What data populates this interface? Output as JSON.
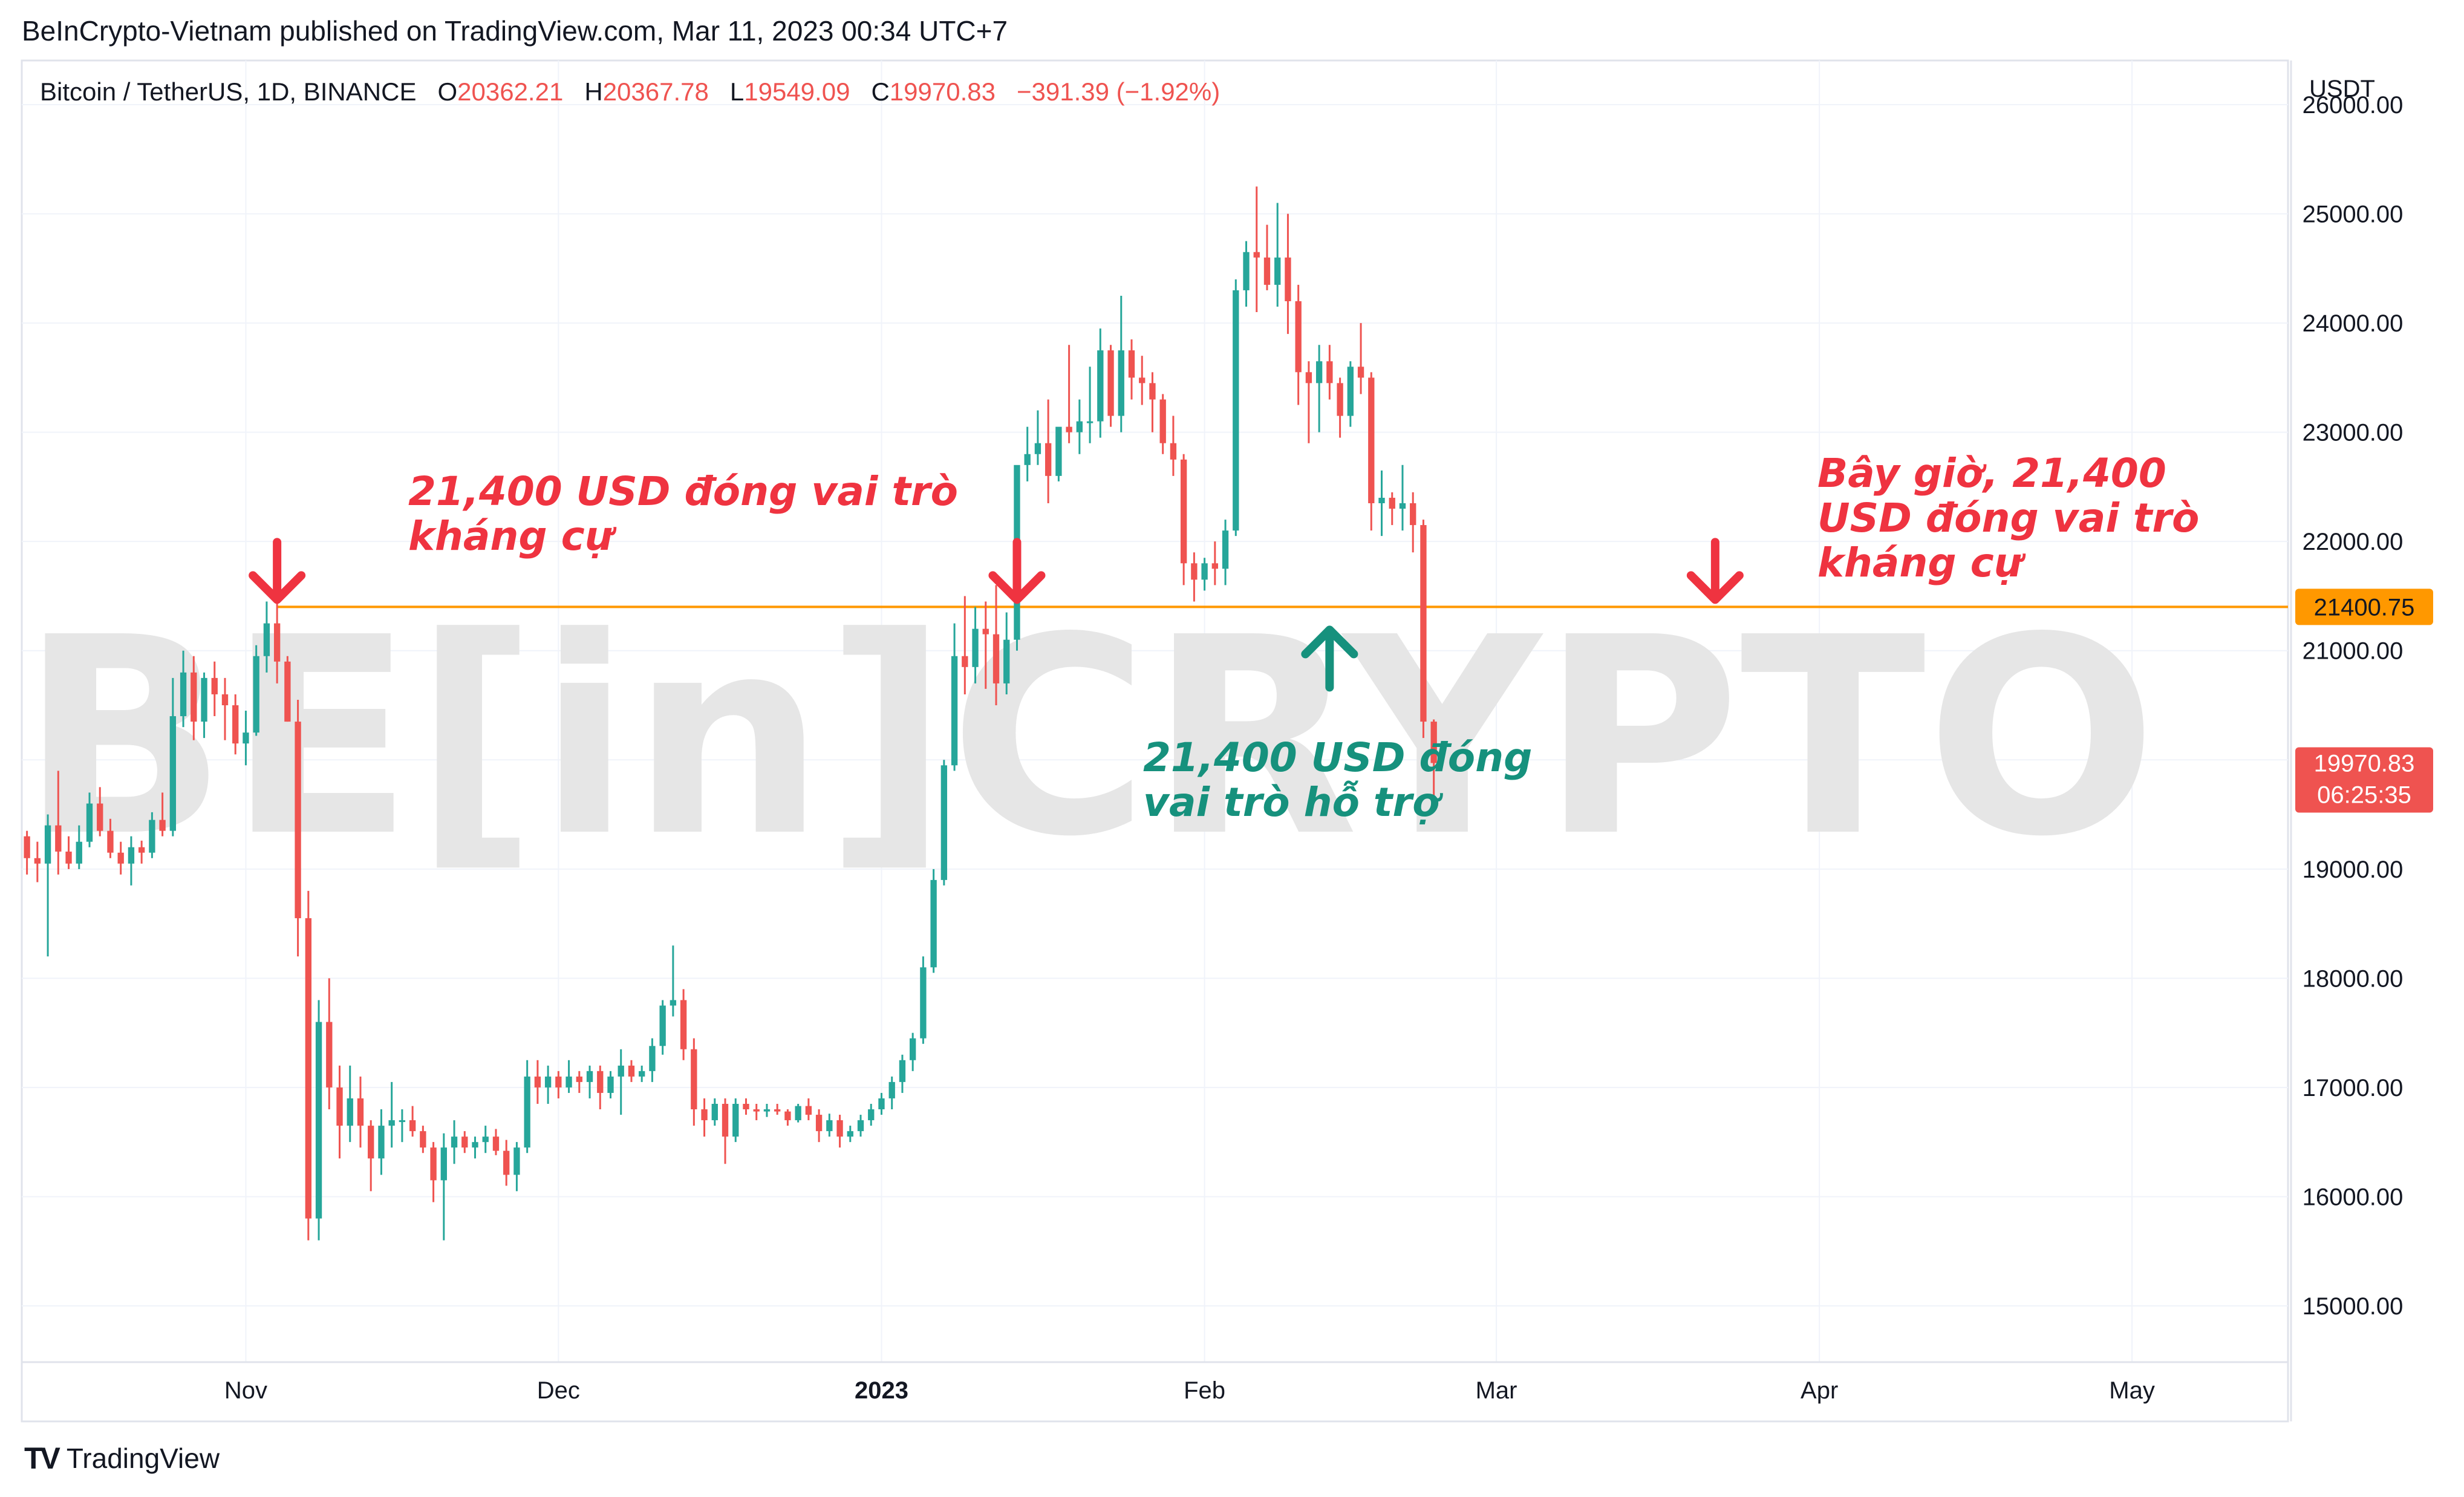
{
  "header": {
    "published": "BeInCrypto-Vietnam published on TradingView.com, Mar 11, 2023 00:34 UTC+7"
  },
  "symbol": {
    "name": "Bitcoin / TetherUS, 1D, BINANCE",
    "o_label": "O",
    "o": "20362.21",
    "h_label": "H",
    "h": "20367.78",
    "l_label": "L",
    "l": "19549.09",
    "c_label": "C",
    "c": "19970.83",
    "change": "−391.39 (−1.92%)"
  },
  "footer": {
    "brand": "TradingView",
    "logo": "TV"
  },
  "watermark": "BE[in]CRYPTO",
  "colors": {
    "up": "#26a69a",
    "down": "#ef5350",
    "level": "#ff9800",
    "annotation_red": "#ef3340",
    "annotation_green": "#16917d",
    "grid": "#f0f3fa",
    "axis_text": "#131722",
    "watermark": "#e6e6e6"
  },
  "chart_data": {
    "type": "candlestick",
    "title": "Bitcoin / TetherUS, 1D, BINANCE",
    "y_unit": "USDT",
    "ylim": [
      14550,
      25950
    ],
    "x_range": [
      "2022-10-11",
      "2023-05-31"
    ],
    "grid": true,
    "y_ticks": [
      "15000.00",
      "16000.00",
      "17000.00",
      "18000.00",
      "19000.00",
      "20000.00",
      "21000.00",
      "22000.00",
      "23000.00",
      "24000.00",
      "25000.00",
      "26000.00"
    ],
    "x_ticks": [
      {
        "label": "Nov",
        "date": "2022-11-01"
      },
      {
        "label": "Dec",
        "date": "2022-12-01"
      },
      {
        "label": "2023",
        "date": "2023-01-01",
        "bold": true
      },
      {
        "label": "Feb",
        "date": "2023-02-01"
      },
      {
        "label": "Mar",
        "date": "2023-03-01"
      },
      {
        "label": "Apr",
        "date": "2023-04-01"
      },
      {
        "label": "May",
        "date": "2023-05-01"
      }
    ],
    "level": {
      "value": 21400.75,
      "label": "21400.75",
      "from_date": "2022-11-04"
    },
    "last_price": {
      "label": "19970.83",
      "countdown": "06:25:35",
      "value": 19970.83
    },
    "candles": {
      "start_date": "2022-10-11",
      "columns": [
        "open",
        "high",
        "low",
        "close"
      ],
      "ohlc": [
        [
          19300,
          19350,
          18950,
          19100
        ],
        [
          19100,
          19250,
          18880,
          19050
        ],
        [
          19050,
          19500,
          18200,
          19400
        ],
        [
          19400,
          19900,
          18950,
          19160
        ],
        [
          19160,
          19300,
          19000,
          19050
        ],
        [
          19050,
          19400,
          19000,
          19250
        ],
        [
          19250,
          19700,
          19200,
          19600
        ],
        [
          19600,
          19750,
          19300,
          19350
        ],
        [
          19350,
          19460,
          19100,
          19150
        ],
        [
          19150,
          19250,
          18950,
          19050
        ],
        [
          19050,
          19300,
          18850,
          19200
        ],
        [
          19200,
          19260,
          19050,
          19150
        ],
        [
          19150,
          19520,
          19100,
          19450
        ],
        [
          19450,
          19700,
          19300,
          19350
        ],
        [
          19350,
          20750,
          19300,
          20400
        ],
        [
          20400,
          21000,
          20300,
          20800
        ],
        [
          20800,
          20950,
          20180,
          20350
        ],
        [
          20350,
          20800,
          20200,
          20750
        ],
        [
          20750,
          20900,
          20400,
          20600
        ],
        [
          20600,
          20750,
          20180,
          20500
        ],
        [
          20500,
          20600,
          20050,
          20150
        ],
        [
          20150,
          20450,
          19950,
          20250
        ],
        [
          20250,
          21050,
          20220,
          20950
        ],
        [
          20950,
          21450,
          20800,
          21250
        ],
        [
          21250,
          21470,
          20700,
          20900
        ],
        [
          20900,
          20950,
          20350,
          20350
        ],
        [
          20350,
          20550,
          18200,
          18550
        ],
        [
          18550,
          18800,
          15600,
          15800
        ],
        [
          15800,
          17800,
          15600,
          17600
        ],
        [
          17600,
          18000,
          16800,
          17000
        ],
        [
          17000,
          17200,
          16350,
          16650
        ],
        [
          16650,
          17200,
          16500,
          16900
        ],
        [
          16900,
          17100,
          16450,
          16650
        ],
        [
          16650,
          16700,
          16050,
          16350
        ],
        [
          16350,
          16800,
          16200,
          16650
        ],
        [
          16650,
          17050,
          16450,
          16700
        ],
        [
          16700,
          16800,
          16500,
          16700
        ],
        [
          16700,
          16830,
          16550,
          16600
        ],
        [
          16600,
          16650,
          16400,
          16450
        ],
        [
          16450,
          16500,
          15950,
          16150
        ],
        [
          16150,
          16580,
          15600,
          16450
        ],
        [
          16450,
          16700,
          16300,
          16550
        ],
        [
          16550,
          16600,
          16400,
          16450
        ],
        [
          16450,
          16550,
          16350,
          16500
        ],
        [
          16500,
          16650,
          16400,
          16550
        ],
        [
          16550,
          16620,
          16380,
          16420
        ],
        [
          16420,
          16520,
          16100,
          16200
        ],
        [
          16200,
          16500,
          16050,
          16450
        ],
        [
          16450,
          17250,
          16400,
          17100
        ],
        [
          17100,
          17250,
          16850,
          17000
        ],
        [
          17000,
          17200,
          16850,
          17100
        ],
        [
          17100,
          17150,
          16900,
          17000
        ],
        [
          17000,
          17250,
          16950,
          17100
        ],
        [
          17100,
          17150,
          16950,
          17050
        ],
        [
          17050,
          17200,
          16900,
          17150
        ],
        [
          17150,
          17200,
          16800,
          16950
        ],
        [
          16950,
          17150,
          16900,
          17100
        ],
        [
          17100,
          17350,
          16750,
          17200
        ],
        [
          17200,
          17250,
          17050,
          17100
        ],
        [
          17100,
          17200,
          17050,
          17150
        ],
        [
          17150,
          17450,
          17050,
          17380
        ],
        [
          17380,
          17800,
          17300,
          17750
        ],
        [
          17750,
          18300,
          17650,
          17800
        ],
        [
          17800,
          17900,
          17250,
          17350
        ],
        [
          17350,
          17450,
          16650,
          16800
        ],
        [
          16800,
          16900,
          16550,
          16700
        ],
        [
          16700,
          16900,
          16650,
          16850
        ],
        [
          16850,
          16900,
          16300,
          16550
        ],
        [
          16550,
          16900,
          16500,
          16850
        ],
        [
          16850,
          16900,
          16750,
          16800
        ],
        [
          16800,
          16850,
          16700,
          16780
        ],
        [
          16780,
          16850,
          16730,
          16800
        ],
        [
          16800,
          16850,
          16750,
          16780
        ],
        [
          16780,
          16800,
          16650,
          16700
        ],
        [
          16700,
          16850,
          16680,
          16830
        ],
        [
          16830,
          16900,
          16700,
          16750
        ],
        [
          16750,
          16800,
          16500,
          16600
        ],
        [
          16600,
          16760,
          16550,
          16700
        ],
        [
          16700,
          16750,
          16450,
          16550
        ],
        [
          16550,
          16650,
          16500,
          16600
        ],
        [
          16600,
          16750,
          16550,
          16700
        ],
        [
          16700,
          16850,
          16650,
          16800
        ],
        [
          16800,
          16950,
          16750,
          16900
        ],
        [
          16900,
          17100,
          16800,
          17050
        ],
        [
          17050,
          17300,
          16950,
          17250
        ],
        [
          17250,
          17500,
          17150,
          17450
        ],
        [
          17450,
          18200,
          17400,
          18100
        ],
        [
          18100,
          19000,
          18050,
          18900
        ],
        [
          18900,
          20000,
          18850,
          19950
        ],
        [
          19950,
          21250,
          19900,
          20950
        ],
        [
          20950,
          21500,
          20600,
          20850
        ],
        [
          20850,
          21400,
          20700,
          21200
        ],
        [
          21200,
          21450,
          20650,
          21150
        ],
        [
          21150,
          21600,
          20500,
          20700
        ],
        [
          20700,
          21350,
          20600,
          21100
        ],
        [
          21100,
          22600,
          21000,
          22700
        ],
        [
          22700,
          23050,
          22550,
          22800
        ],
        [
          22800,
          23200,
          22700,
          22900
        ],
        [
          22900,
          23300,
          22350,
          22600
        ],
        [
          22600,
          23000,
          22550,
          23050
        ],
        [
          23050,
          23800,
          22900,
          23000
        ],
        [
          23000,
          23300,
          22800,
          23100
        ],
        [
          23100,
          23600,
          22900,
          23100
        ],
        [
          23100,
          23950,
          22950,
          23750
        ],
        [
          23750,
          23800,
          23050,
          23150
        ],
        [
          23150,
          24250,
          23000,
          23750
        ],
        [
          23750,
          23850,
          23300,
          23500
        ],
        [
          23500,
          23700,
          23250,
          23450
        ],
        [
          23450,
          23550,
          23000,
          23300
        ],
        [
          23300,
          23350,
          22800,
          22900
        ],
        [
          22900,
          23150,
          22600,
          22750
        ],
        [
          22750,
          22800,
          21600,
          21800
        ],
        [
          21800,
          21900,
          21450,
          21650
        ],
        [
          21650,
          21850,
          21550,
          21800
        ],
        [
          21800,
          22000,
          21600,
          21750
        ],
        [
          21750,
          22200,
          21600,
          22100
        ],
        [
          22100,
          24400,
          22050,
          24300
        ],
        [
          24300,
          24750,
          24150,
          24650
        ],
        [
          24650,
          25250,
          24100,
          24600
        ],
        [
          24600,
          24900,
          24300,
          24350
        ],
        [
          24350,
          25100,
          24150,
          24600
        ],
        [
          24600,
          25000,
          23900,
          24200
        ],
        [
          24200,
          24350,
          23250,
          23550
        ],
        [
          23550,
          23650,
          22900,
          23450
        ],
        [
          23450,
          23800,
          23000,
          23650
        ],
        [
          23650,
          23800,
          23300,
          23450
        ],
        [
          23450,
          23500,
          22950,
          23150
        ],
        [
          23150,
          23650,
          23050,
          23600
        ],
        [
          23600,
          24000,
          23350,
          23500
        ],
        [
          23500,
          23550,
          22100,
          22350
        ],
        [
          22350,
          22650,
          22050,
          22400
        ],
        [
          22400,
          22450,
          22150,
          22300
        ],
        [
          22300,
          22700,
          22100,
          22350
        ],
        [
          22350,
          22450,
          21900,
          22150
        ],
        [
          22150,
          22200,
          20200,
          20350
        ],
        [
          20350,
          20370,
          19549,
          19971
        ]
      ]
    },
    "annotations": [
      {
        "text": "21,400 USD đóng vai trò\nkháng cự",
        "color": "red"
      },
      {
        "text": "21,400 USD đóng\nvai trò hỗ trợ",
        "color": "green"
      },
      {
        "text": "Bây giờ, 21,400\nUSD đóng vai trò\nkháng cự",
        "color": "red"
      }
    ],
    "arrows": [
      {
        "direction": "down",
        "date": "2022-11-04",
        "color": "red"
      },
      {
        "direction": "down",
        "date": "2023-01-14",
        "color": "red"
      },
      {
        "direction": "up",
        "date": "2023-02-13",
        "color": "green"
      },
      {
        "direction": "down",
        "date": "2023-03-22",
        "color": "red"
      }
    ]
  }
}
